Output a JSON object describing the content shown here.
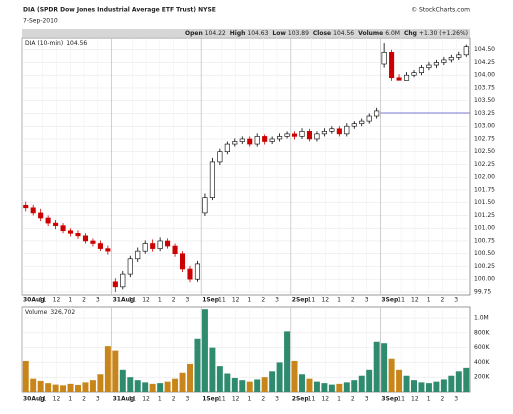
{
  "chart_data": {
    "type": "candlestick",
    "title": "DIA (SPDR Dow Jones Industrial Average ETF Trust) NYSE",
    "source": "© StockCharts.com",
    "date": "7-Sep-2010",
    "stats": [
      {
        "label": "Open",
        "value": 104.22
      },
      {
        "label": "High",
        "value": 104.63
      },
      {
        "label": "Low",
        "value": 103.89
      },
      {
        "label": "Close",
        "value": 104.56
      },
      {
        "label": "Volume",
        "value": "6.0M"
      },
      {
        "label": "Chg",
        "value": "+1.30 (+1.26%)"
      }
    ],
    "price_legend": {
      "name": "DIA (10-min)",
      "value": 104.56
    },
    "up_color": "#000000",
    "down_color": "#cc0000",
    "prev_close": 103.26,
    "prev_close_color": "#7b7bd6",
    "days": [
      "30Aug",
      "31Aug",
      "1Sep",
      "2Sep",
      "3Sep"
    ],
    "hours": [
      "11",
      "12",
      "1",
      "2",
      "3"
    ],
    "open": [
      101.45,
      101.4,
      101.3,
      101.2,
      101.1,
      101.05,
      100.95,
      100.9,
      100.85,
      100.75,
      100.7,
      100.6,
      99.95,
      99.85,
      100.1,
      100.4,
      100.55,
      100.7,
      100.6,
      100.75,
      100.65,
      100.5,
      100.2,
      100.0,
      101.3,
      101.6,
      102.3,
      102.5,
      102.65,
      102.7,
      102.75,
      102.65,
      102.8,
      102.7,
      102.75,
      102.8,
      102.85,
      102.8,
      102.9,
      102.75,
      102.85,
      102.9,
      102.95,
      102.85,
      103.0,
      103.05,
      103.1,
      103.2,
      104.22,
      104.45,
      103.95,
      103.9,
      104.0,
      104.05,
      104.15,
      104.2,
      104.25,
      104.3,
      104.35,
      104.4
    ],
    "high": [
      101.52,
      101.46,
      101.38,
      101.25,
      101.16,
      101.1,
      101.0,
      100.96,
      100.9,
      100.8,
      100.76,
      100.66,
      100.02,
      100.16,
      100.46,
      100.62,
      100.76,
      100.78,
      100.82,
      100.8,
      100.7,
      100.55,
      100.26,
      100.36,
      101.68,
      102.38,
      102.56,
      102.7,
      102.76,
      102.8,
      102.8,
      102.86,
      102.84,
      102.8,
      102.86,
      102.9,
      102.9,
      102.96,
      102.95,
      102.9,
      102.96,
      103.0,
      103.0,
      103.06,
      103.1,
      103.15,
      103.25,
      103.36,
      104.63,
      104.5,
      104.02,
      104.06,
      104.1,
      104.2,
      104.26,
      104.3,
      104.36,
      104.4,
      104.46,
      104.6
    ],
    "low": [
      101.33,
      101.25,
      101.14,
      101.04,
      100.98,
      100.9,
      100.84,
      100.79,
      100.7,
      100.64,
      100.55,
      100.48,
      99.75,
      99.8,
      100.04,
      100.34,
      100.5,
      100.54,
      100.55,
      100.6,
      100.44,
      100.14,
      99.94,
      99.95,
      101.24,
      101.55,
      102.24,
      102.45,
      102.6,
      102.65,
      102.6,
      102.6,
      102.64,
      102.65,
      102.7,
      102.76,
      102.74,
      102.75,
      102.7,
      102.7,
      102.8,
      102.85,
      102.8,
      102.8,
      102.95,
      103.0,
      103.05,
      103.15,
      104.15,
      103.89,
      103.9,
      103.92,
      103.96,
      104.0,
      104.1,
      104.14,
      104.2,
      104.25,
      104.3,
      104.36
    ],
    "close": [
      101.4,
      101.3,
      101.2,
      101.1,
      101.05,
      100.95,
      100.9,
      100.85,
      100.75,
      100.7,
      100.6,
      100.55,
      99.85,
      100.1,
      100.4,
      100.55,
      100.7,
      100.6,
      100.75,
      100.65,
      100.5,
      100.2,
      100.0,
      100.3,
      101.6,
      102.3,
      102.5,
      102.65,
      102.7,
      102.75,
      102.65,
      102.8,
      102.7,
      102.75,
      102.8,
      102.85,
      102.8,
      102.9,
      102.75,
      102.85,
      102.9,
      102.95,
      102.85,
      103.0,
      103.05,
      103.1,
      103.2,
      103.3,
      104.45,
      103.95,
      103.9,
      104.0,
      104.05,
      104.15,
      104.2,
      104.25,
      104.3,
      104.35,
      104.4,
      104.56
    ],
    "ylim": [
      99.69,
      104.73
    ],
    "yticks": [
      {
        "value": 99.75,
        "label": "99.75"
      },
      {
        "value": 100,
        "label": "100.00"
      },
      {
        "value": 100.25,
        "label": "100.25"
      },
      {
        "value": 100.5,
        "label": "100.50"
      },
      {
        "value": 100.75,
        "label": "100.75"
      },
      {
        "value": 101,
        "label": "101.00"
      },
      {
        "value": 101.25,
        "label": "101.25"
      },
      {
        "value": 101.5,
        "label": "101.50"
      },
      {
        "value": 101.75,
        "label": "101.75"
      },
      {
        "value": 102,
        "label": "102.00"
      },
      {
        "value": 102.25,
        "label": "102.25"
      },
      {
        "value": 102.5,
        "label": "102.50"
      },
      {
        "value": 102.75,
        "label": "102.75"
      },
      {
        "value": 103,
        "label": "103.00"
      },
      {
        "value": 103.25,
        "label": "103.25"
      },
      {
        "value": 103.5,
        "label": "103.50"
      },
      {
        "value": 103.75,
        "label": "103.75"
      },
      {
        "value": 104,
        "label": "104.00"
      },
      {
        "value": 104.25,
        "label": "104.25"
      },
      {
        "value": 104.5,
        "label": "104.50"
      }
    ],
    "grid": true,
    "volume": {
      "name": "Volume",
      "legend_value": {
        "value": 326702,
        "label": "326,702"
      },
      "up_color": "#2e8b6e",
      "down_color": "#c8861a",
      "values": [
        420000,
        180000,
        150000,
        120000,
        100000,
        90000,
        110000,
        95000,
        130000,
        160000,
        240000,
        620000,
        560000,
        300000,
        200000,
        160000,
        130000,
        110000,
        120000,
        140000,
        180000,
        260000,
        380000,
        720000,
        1120000,
        600000,
        350000,
        250000,
        190000,
        160000,
        140000,
        170000,
        200000,
        280000,
        400000,
        820000,
        420000,
        240000,
        180000,
        140000,
        120000,
        100000,
        110000,
        130000,
        160000,
        220000,
        300000,
        680000,
        660000,
        450000,
        300000,
        220000,
        160000,
        130000,
        120000,
        140000,
        170000,
        220000,
        280000,
        326702
      ],
      "ylim": [
        0,
        1150000
      ],
      "yticks": [
        {
          "value": 200000,
          "label": "200K"
        },
        {
          "value": 400000,
          "label": "400K"
        },
        {
          "value": 600000,
          "label": "600K"
        },
        {
          "value": 800000,
          "label": "800K"
        },
        {
          "value": 1000000,
          "label": "1.0M"
        }
      ]
    }
  }
}
